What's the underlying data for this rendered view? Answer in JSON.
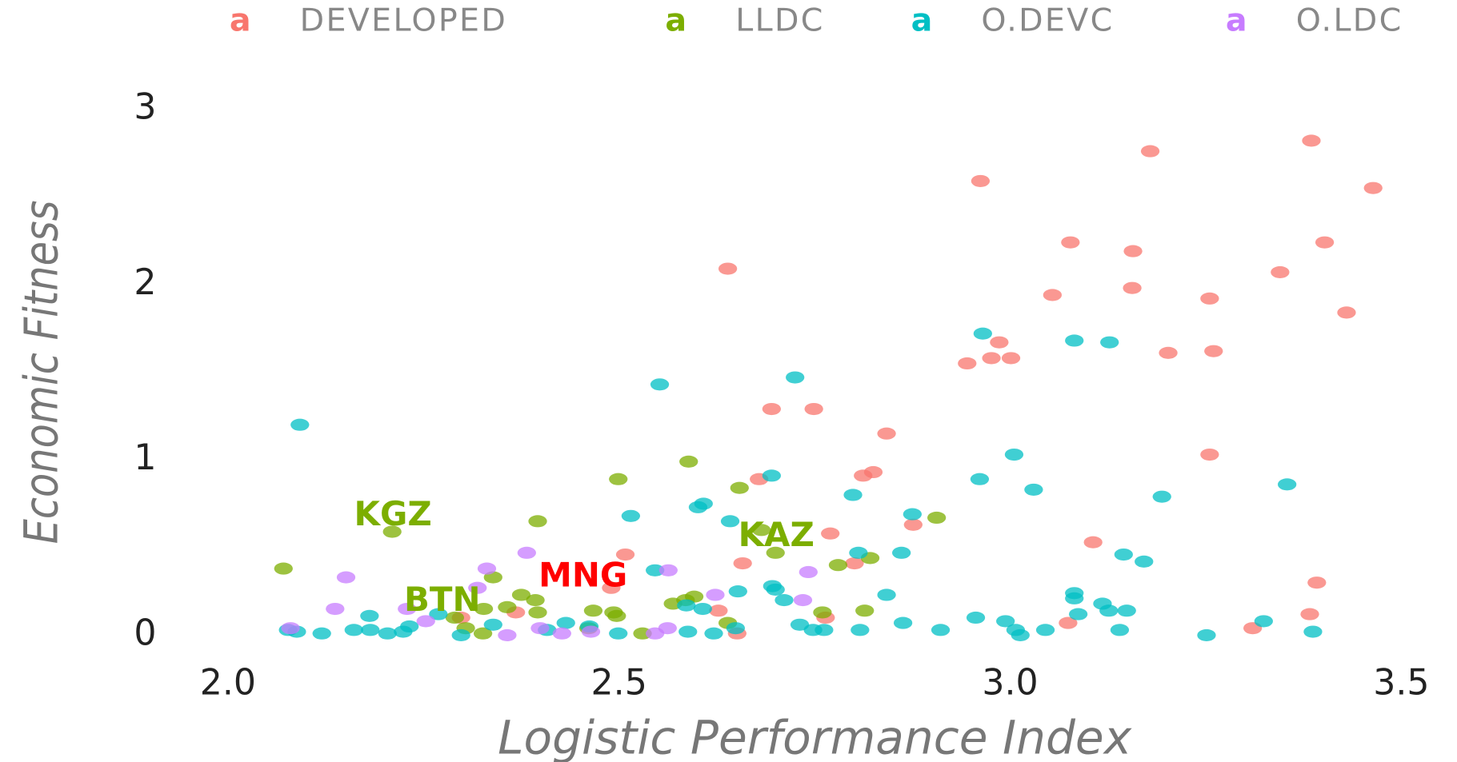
{
  "chart_data": {
    "type": "scatter",
    "xlabel": "Logistic Performance Index",
    "ylabel": "Economic Fitness",
    "legend_key": "a",
    "legend_position": "top",
    "grid": false,
    "xlim": [
      1.93,
      3.57
    ],
    "ylim": [
      -0.15,
      3.15
    ],
    "xticks": [
      {
        "value": 2,
        "label": "2.0"
      },
      {
        "value": 2.5,
        "label": "2.5"
      },
      {
        "value": 3,
        "label": "3.0"
      },
      {
        "value": 3.5,
        "label": "3.5"
      }
    ],
    "yticks": [
      0,
      1,
      2,
      3
    ],
    "series": [
      {
        "name": "DEVELOPED",
        "color": "#F8766D",
        "x": [
          2.639,
          2.962,
          3.179,
          3.385,
          3.464,
          3.077,
          3.157,
          3.402,
          3.345,
          3.054,
          3.156,
          3.255,
          3.43,
          2.986,
          2.976,
          3.001,
          2.945,
          3.202,
          3.26,
          2.695,
          2.749,
          2.842,
          2.825,
          2.812,
          2.679,
          3.255,
          2.77,
          2.876,
          3.106,
          2.508,
          2.658,
          2.801,
          3.392,
          2.49,
          2.627,
          2.764,
          3.074,
          3.31,
          3.383,
          2.651,
          2.298,
          2.368
        ],
        "values": [
          2.09,
          2.59,
          2.76,
          2.82,
          2.55,
          2.24,
          2.19,
          2.24,
          2.07,
          1.94,
          1.98,
          1.92,
          1.84,
          1.67,
          1.58,
          1.58,
          1.55,
          1.61,
          1.62,
          1.29,
          1.29,
          1.15,
          0.93,
          0.91,
          0.89,
          1.03,
          0.58,
          0.63,
          0.53,
          0.46,
          0.41,
          0.41,
          0.3,
          0.27,
          0.14,
          0.1,
          0.07,
          0.04,
          0.12,
          0.01,
          0.1,
          0.13
        ]
      },
      {
        "name": "LLDC",
        "color": "#7CAE00",
        "x": [
          2.071,
          2.21,
          2.396,
          2.499,
          2.589,
          2.654,
          2.7,
          2.682,
          2.906,
          2.821,
          2.78,
          2.339,
          2.375,
          2.393,
          2.396,
          2.467,
          2.497,
          2.493,
          2.596,
          2.569,
          2.585,
          2.53,
          2.326,
          2.304,
          2.29,
          2.639,
          2.76,
          2.814,
          2.327,
          2.357,
          2.461
        ],
        "values": [
          0.38,
          0.59,
          0.65,
          0.89,
          0.99,
          0.84,
          0.47,
          0.6,
          0.67,
          0.44,
          0.4,
          0.33,
          0.23,
          0.2,
          0.13,
          0.14,
          0.11,
          0.13,
          0.22,
          0.18,
          0.2,
          0.01,
          0.01,
          0.04,
          0.1,
          0.07,
          0.13,
          0.14,
          0.15,
          0.16,
          0.04
        ]
      },
      {
        "name": "O.DEVC",
        "color": "#00BFC4",
        "x": [
          2.092,
          2.552,
          2.725,
          2.965,
          3.082,
          3.127,
          3.005,
          2.961,
          3.03,
          3.194,
          3.354,
          2.695,
          2.608,
          2.601,
          2.515,
          2.642,
          2.799,
          2.875,
          2.861,
          2.806,
          3.145,
          3.171,
          2.546,
          2.652,
          2.696,
          2.7,
          2.711,
          2.842,
          3.082,
          3.082,
          3.118,
          3.149,
          3.126,
          3.087,
          2.956,
          2.994,
          3.324,
          2.586,
          2.607,
          2.731,
          2.863,
          2.748,
          2.762,
          2.808,
          2.911,
          3.007,
          3.013,
          3.045,
          3.14,
          3.251,
          3.387,
          2.588,
          2.621,
          2.649,
          2.499,
          2.462,
          2.432,
          2.408,
          2.077,
          2.088,
          2.12,
          2.161,
          2.182,
          2.181,
          2.204,
          2.224,
          2.232,
          2.269,
          2.298,
          2.339
        ],
        "values": [
          1.2,
          1.43,
          1.47,
          1.72,
          1.68,
          1.67,
          1.03,
          0.89,
          0.83,
          0.79,
          0.86,
          0.91,
          0.75,
          0.73,
          0.68,
          0.65,
          0.8,
          0.69,
          0.47,
          0.47,
          0.46,
          0.42,
          0.37,
          0.25,
          0.28,
          0.26,
          0.2,
          0.23,
          0.24,
          0.21,
          0.18,
          0.14,
          0.14,
          0.12,
          0.1,
          0.08,
          0.08,
          0.17,
          0.15,
          0.06,
          0.07,
          0.03,
          0.03,
          0.03,
          0.03,
          0.03,
          0.0,
          0.03,
          0.03,
          0.0,
          0.02,
          0.02,
          0.01,
          0.04,
          0.01,
          0.05,
          0.07,
          0.03,
          0.03,
          0.02,
          0.01,
          0.03,
          0.03,
          0.11,
          0.01,
          0.02,
          0.05,
          0.12,
          0.0,
          0.06
        ]
      },
      {
        "name": "O.LDC",
        "color": "#C77CFF",
        "x": [
          2.08,
          2.151,
          2.137,
          2.229,
          2.253,
          2.319,
          2.331,
          2.382,
          2.357,
          2.399,
          2.427,
          2.464,
          2.546,
          2.562,
          2.563,
          2.623,
          2.735,
          2.742
        ],
        "values": [
          0.04,
          0.33,
          0.15,
          0.15,
          0.08,
          0.27,
          0.38,
          0.47,
          0.0,
          0.04,
          0.01,
          0.02,
          0.01,
          0.04,
          0.37,
          0.23,
          0.2,
          0.36
        ]
      }
    ],
    "annotations": [
      {
        "text": "KGZ",
        "x": 2.211,
        "y": 0.68,
        "color": "#7CAE00"
      },
      {
        "text": "BTN",
        "x": 2.274,
        "y": 0.19,
        "color": "#7CAE00"
      },
      {
        "text": "MNG",
        "x": 2.454,
        "y": 0.33,
        "color": "#FF0000"
      },
      {
        "text": "KAZ",
        "x": 2.701,
        "y": 0.56,
        "color": "#7CAE00"
      }
    ]
  }
}
